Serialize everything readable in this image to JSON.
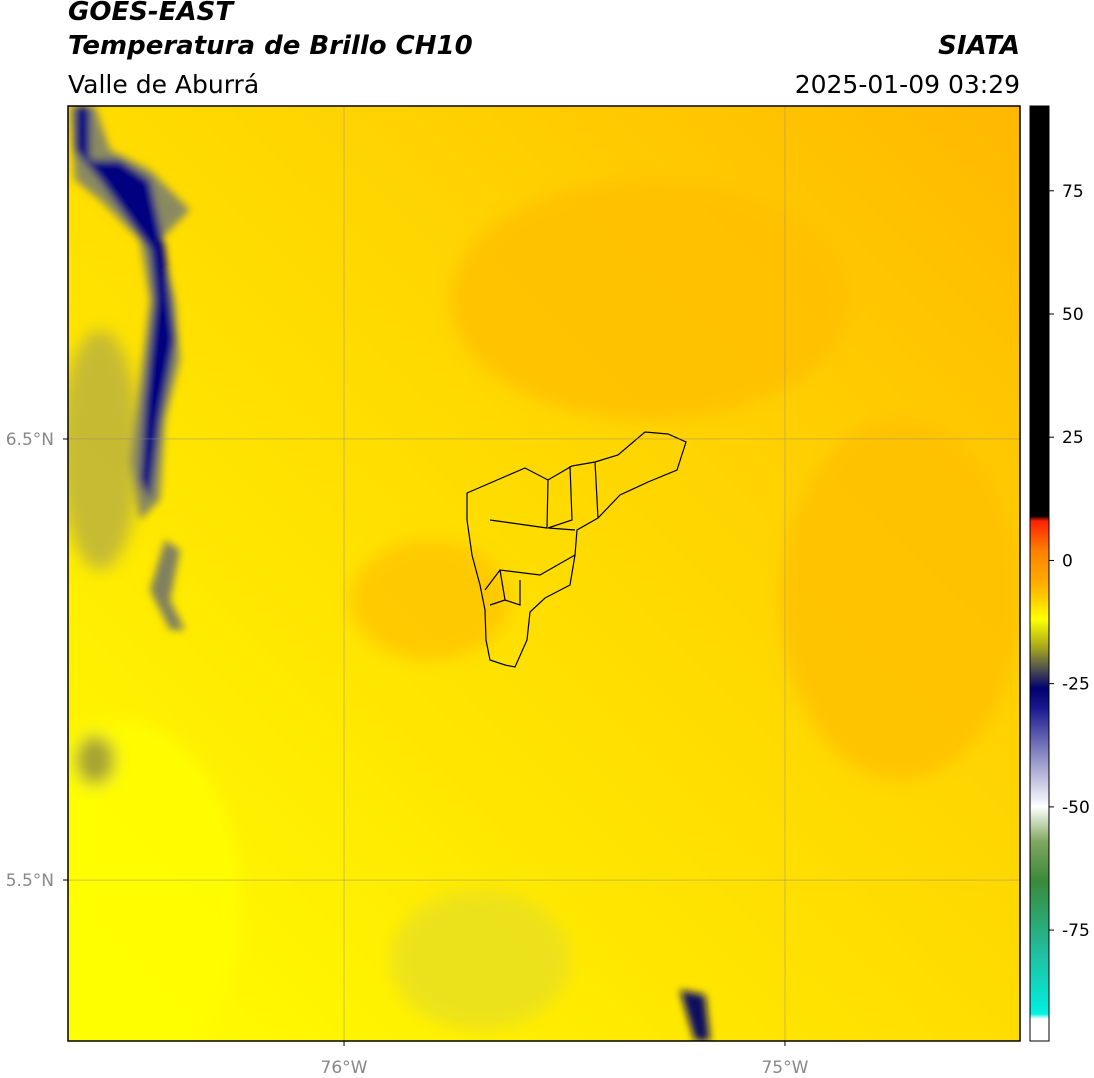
{
  "header": {
    "title": "GOES-EAST",
    "subtitle": "Temperatura de Brillo CH10",
    "source": "SIATA",
    "region": "Valle de Aburrá",
    "datetime": "2025-01-09 03:29"
  },
  "map": {
    "xlim": [
      -76.626,
      -74.467
    ],
    "ylim": [
      5.135,
      7.255
    ],
    "xticks": [
      {
        "value": -76,
        "label": "76°W"
      },
      {
        "value": -75,
        "label": "75°W"
      }
    ],
    "yticks": [
      {
        "value": 6.5,
        "label": "6.5°N"
      },
      {
        "value": 5.5,
        "label": "5.5°N"
      }
    ],
    "grid": true
  },
  "colorbar": {
    "lim": [
      -97.5,
      92.2
    ],
    "ticks": [
      75,
      50,
      25,
      0,
      -25,
      -50,
      -75
    ],
    "stops": [
      {
        "value": -97.5,
        "color": "#ffffff"
      },
      {
        "value": -93,
        "color": "#ffffff"
      },
      {
        "value": -92,
        "color": "#00f0e0"
      },
      {
        "value": -80,
        "color": "#20c0a0"
      },
      {
        "value": -65,
        "color": "#3a8a3a"
      },
      {
        "value": -57,
        "color": "#80a860"
      },
      {
        "value": -50,
        "color": "#ffffff"
      },
      {
        "value": -40,
        "color": "#9090c8"
      },
      {
        "value": -30,
        "color": "#1a1a90"
      },
      {
        "value": -26,
        "color": "#000070"
      },
      {
        "value": -22,
        "color": "#505050"
      },
      {
        "value": -18,
        "color": "#a0a020"
      },
      {
        "value": -12,
        "color": "#ffff00"
      },
      {
        "value": -5,
        "color": "#ffb000"
      },
      {
        "value": 2,
        "color": "#ff8000"
      },
      {
        "value": 8,
        "color": "#ff2000"
      },
      {
        "value": 9,
        "color": "#000000"
      },
      {
        "value": 92.2,
        "color": "#000000"
      }
    ]
  }
}
